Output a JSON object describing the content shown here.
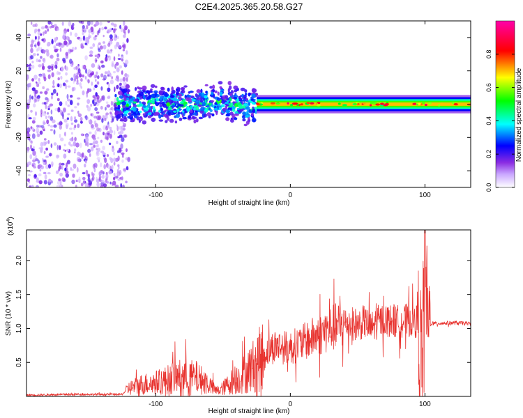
{
  "title": "C2E4.2025.365.20.58.G27",
  "chart_data": [
    {
      "type": "heatmap",
      "name": "spectrogram",
      "xlabel": "Height of straight line (km)",
      "ylabel": "Frequency (Hz)",
      "xlim": [
        -196,
        134
      ],
      "ylim": [
        -50,
        50
      ],
      "xticks": [
        -100,
        0,
        100
      ],
      "xtick_labels": [
        "-100",
        "0",
        "100"
      ],
      "yticks": [
        -40,
        -20,
        0,
        20,
        40
      ],
      "ytick_labels": [
        "-40",
        "-20",
        "0",
        "20",
        "40"
      ],
      "colorbar": {
        "label": "Normalized spectral amplitude",
        "range": [
          0,
          1
        ],
        "ticks": [
          0.0,
          0.2,
          0.4,
          0.6,
          0.8
        ],
        "tick_labels": [
          "0.0",
          "0.2",
          "0.4",
          "0.6",
          "0.8"
        ],
        "colors": [
          "#ffffff",
          "#8a2be2",
          "#0000ff",
          "#00ffff",
          "#00ff00",
          "#ffff00",
          "#ff0000",
          "#ff00aa"
        ]
      },
      "regions": [
        {
          "x_range": [
            -196,
            -120
          ],
          "freq_range": [
            -50,
            50
          ],
          "amplitude_range": [
            0.0,
            0.15
          ],
          "description": "scattered noise"
        },
        {
          "x_range": [
            -130,
            -25
          ],
          "freq_range": [
            -12,
            12
          ],
          "amplitude_range": [
            0.1,
            0.5
          ],
          "description": "broadband signal"
        },
        {
          "x_range": [
            -25,
            134
          ],
          "freq_range": [
            -4,
            4
          ],
          "amplitude_range": [
            0.4,
            0.95
          ],
          "description": "narrow band near 0 Hz"
        }
      ]
    },
    {
      "type": "line",
      "name": "snr",
      "xlabel": "Height of straight line (km)",
      "ylabel": "SNR (10 * v/v)",
      "yscale_label": "(x10",
      "yscale_exp": "4",
      "yscale_close": ")",
      "xlim": [
        -196,
        134
      ],
      "ylim": [
        0,
        2.45
      ],
      "xticks": [
        -100,
        0,
        100
      ],
      "xtick_labels": [
        "-100",
        "0",
        "100"
      ],
      "yticks": [
        0.5,
        1.0,
        1.5,
        2.0
      ],
      "ytick_labels": [
        "0.5",
        "1.0",
        "1.5",
        "2.0"
      ],
      "color": "#e8332f",
      "series": [
        {
          "name": "SNR",
          "x": [
            -196,
            -160,
            -125,
            -120,
            -110,
            -100,
            -90,
            -80,
            -70,
            -62,
            -55,
            -50,
            -45,
            -40,
            -35,
            -30,
            -25,
            -20,
            -15,
            -10,
            -5,
            0,
            10,
            20,
            30,
            40,
            45,
            50,
            55,
            60,
            65,
            70,
            80,
            90,
            95,
            98,
            100,
            102,
            105,
            115,
            125,
            134
          ],
          "y": [
            0.02,
            0.03,
            0.03,
            0.12,
            0.18,
            0.2,
            0.25,
            0.3,
            0.28,
            0.2,
            0.08,
            0.12,
            0.2,
            0.25,
            0.32,
            0.4,
            0.5,
            0.6,
            0.7,
            0.75,
            0.72,
            0.72,
            0.8,
            0.9,
            1.0,
            1.06,
            1.08,
            1.05,
            1.1,
            1.0,
            1.1,
            1.12,
            1.1,
            1.12,
            1.1,
            0.6,
            2.2,
            1.05,
            1.07,
            1.08,
            1.08,
            1.07
          ]
        }
      ]
    }
  ]
}
